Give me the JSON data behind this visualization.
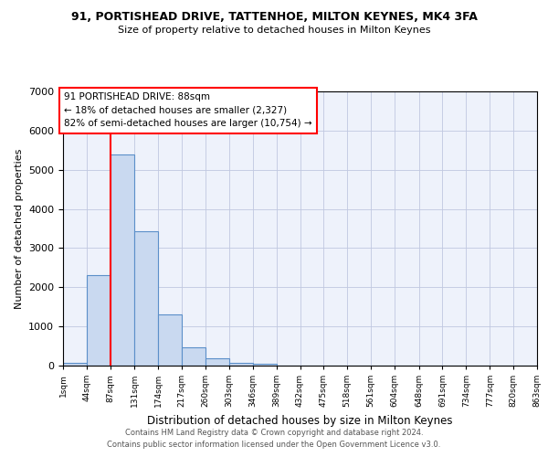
{
  "title": "91, PORTISHEAD DRIVE, TATTENHOE, MILTON KEYNES, MK4 3FA",
  "subtitle": "Size of property relative to detached houses in Milton Keynes",
  "xlabel": "Distribution of detached houses by size in Milton Keynes",
  "ylabel": "Number of detached properties",
  "bar_color": "#c9d9f0",
  "bar_edge_color": "#5b8fc9",
  "bar_heights": [
    70,
    2300,
    5400,
    3430,
    1310,
    460,
    190,
    80,
    50,
    5,
    0,
    0,
    0,
    0,
    0,
    0,
    0,
    0,
    0,
    0
  ],
  "bin_edges": [
    1,
    44,
    87,
    131,
    174,
    217,
    260,
    303,
    346,
    389,
    432,
    475,
    518,
    561,
    604,
    648,
    691,
    734,
    777,
    820,
    863
  ],
  "x_labels": [
    "1sqm",
    "44sqm",
    "87sqm",
    "131sqm",
    "174sqm",
    "217sqm",
    "260sqm",
    "303sqm",
    "346sqm",
    "389sqm",
    "432sqm",
    "475sqm",
    "518sqm",
    "561sqm",
    "604sqm",
    "648sqm",
    "691sqm",
    "734sqm",
    "777sqm",
    "820sqm",
    "863sqm"
  ],
  "red_line_x": 88,
  "ylim": [
    0,
    7000
  ],
  "annotation_title": "91 PORTISHEAD DRIVE: 88sqm",
  "annotation_line2": "← 18% of detached houses are smaller (2,327)",
  "annotation_line3": "82% of semi-detached houses are larger (10,754) →",
  "grid_color": "#c0c8e0",
  "background_color": "#eef2fb",
  "footer1": "Contains HM Land Registry data © Crown copyright and database right 2024.",
  "footer2": "Contains public sector information licensed under the Open Government Licence v3.0."
}
